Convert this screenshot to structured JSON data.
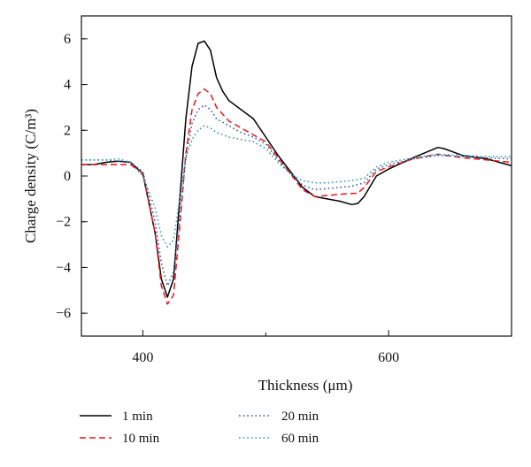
{
  "chart_data": {
    "type": "line",
    "xlabel": "Thickness (μm)",
    "ylabel": "Charge density (C/m³)",
    "xlim": [
      350,
      700
    ],
    "ylim": [
      -7,
      7
    ],
    "xticks": [
      400,
      600
    ],
    "yticks": [
      -6,
      -4,
      -2,
      0,
      2,
      4,
      6
    ],
    "grid": false,
    "legend_position": "bottom, two columns",
    "series": [
      {
        "name": "1 min",
        "color": "#000000",
        "dash": "solid",
        "x": [
          350,
          360,
          370,
          380,
          390,
          400,
          410,
          415,
          420,
          425,
          430,
          435,
          440,
          445,
          450,
          455,
          460,
          465,
          470,
          480,
          490,
          500,
          510,
          520,
          530,
          540,
          550,
          560,
          570,
          575,
          580,
          590,
          600,
          620,
          640,
          645,
          660,
          680,
          700
        ],
        "y": [
          0.5,
          0.5,
          0.6,
          0.65,
          0.6,
          0.1,
          -2.5,
          -4.5,
          -5.3,
          -4.5,
          -1.0,
          2.5,
          4.8,
          5.8,
          5.9,
          5.5,
          4.3,
          3.7,
          3.3,
          2.9,
          2.5,
          1.7,
          0.9,
          0.2,
          -0.5,
          -0.9,
          -1.0,
          -1.1,
          -1.25,
          -1.2,
          -0.9,
          0,
          0.3,
          0.8,
          1.25,
          1.2,
          0.9,
          0.75,
          0.45
        ]
      },
      {
        "name": "10 min",
        "color": "#e41a1c",
        "dash": "dashed",
        "x": [
          350,
          370,
          390,
          400,
          410,
          415,
          420,
          425,
          430,
          435,
          440,
          445,
          450,
          455,
          460,
          470,
          480,
          490,
          500,
          510,
          520,
          530,
          540,
          550,
          560,
          575,
          580,
          590,
          600,
          620,
          640,
          660,
          680,
          700
        ],
        "y": [
          0.5,
          0.5,
          0.5,
          0.1,
          -2.5,
          -4.8,
          -5.6,
          -5.2,
          -2.2,
          1.0,
          2.9,
          3.6,
          3.8,
          3.6,
          3.0,
          2.4,
          2.1,
          1.8,
          1.5,
          0.8,
          0.1,
          -0.6,
          -0.9,
          -0.85,
          -0.8,
          -0.75,
          -0.5,
          0.2,
          0.4,
          0.75,
          0.95,
          0.8,
          0.7,
          0.6
        ]
      },
      {
        "name": "20 min",
        "color": "#3a4fa0",
        "dash": "dotted",
        "x": [
          350,
          370,
          390,
          400,
          410,
          415,
          420,
          425,
          430,
          435,
          440,
          445,
          450,
          455,
          460,
          470,
          480,
          490,
          500,
          510,
          520,
          530,
          540,
          550,
          560,
          570,
          580,
          590,
          600,
          620,
          640,
          660,
          680,
          700
        ],
        "y": [
          0.7,
          0.7,
          0.6,
          0.2,
          -2.0,
          -3.8,
          -4.8,
          -4.2,
          -1.8,
          0.8,
          2.3,
          2.9,
          3.1,
          2.9,
          2.5,
          2.2,
          1.9,
          1.7,
          1.4,
          0.7,
          0.1,
          -0.4,
          -0.6,
          -0.55,
          -0.5,
          -0.45,
          -0.3,
          0.3,
          0.5,
          0.75,
          0.9,
          0.85,
          0.8,
          0.75
        ]
      },
      {
        "name": "60 min",
        "color": "#2b9a9a",
        "dash": "dotted",
        "x": [
          350,
          370,
          380,
          390,
          400,
          410,
          415,
          420,
          425,
          430,
          435,
          440,
          445,
          450,
          455,
          460,
          470,
          480,
          490,
          500,
          510,
          520,
          530,
          540,
          550,
          560,
          570,
          580,
          590,
          600,
          620,
          640,
          660,
          680,
          700
        ],
        "y": [
          0.7,
          0.7,
          0.75,
          0.6,
          0.0,
          -1.4,
          -2.6,
          -3.1,
          -2.8,
          -1.0,
          0.8,
          1.6,
          2.0,
          2.2,
          2.1,
          1.9,
          1.7,
          1.6,
          1.5,
          1.2,
          0.6,
          0.1,
          -0.2,
          -0.3,
          -0.3,
          -0.25,
          -0.2,
          -0.1,
          0.4,
          0.6,
          0.8,
          0.95,
          0.9,
          0.85,
          0.85
        ]
      }
    ]
  }
}
